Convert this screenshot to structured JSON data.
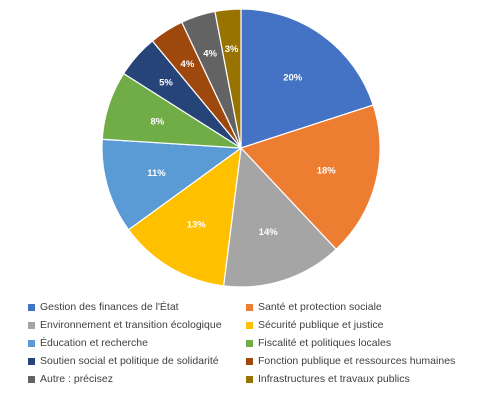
{
  "chart_data": {
    "type": "pie",
    "categories": [
      "Gestion des finances de l'État",
      "Santé et protection sociale",
      "Environnement et transition écologique",
      "Sécurité publique et justice",
      "Éducation et recherche",
      "Fiscalité et politiques locales",
      "Soutien social et politique de solidarité",
      "Fonction publique et ressources humaines",
      "Autre : précisez",
      "Infrastructures et travaux publics"
    ],
    "values": [
      20,
      18,
      14,
      13,
      11,
      8,
      5,
      4,
      4,
      3
    ],
    "value_labels": [
      "20%",
      "18%",
      "14%",
      "13%",
      "11%",
      "8%",
      "5%",
      "4%",
      "4%",
      "3%"
    ],
    "colors": [
      "#4472C4",
      "#ED7D31",
      "#A5A5A5",
      "#FFC000",
      "#5B9BD5",
      "#70AD47",
      "#264478",
      "#9E480E",
      "#636363",
      "#997300"
    ],
    "legend_position": "bottom",
    "title": ""
  }
}
